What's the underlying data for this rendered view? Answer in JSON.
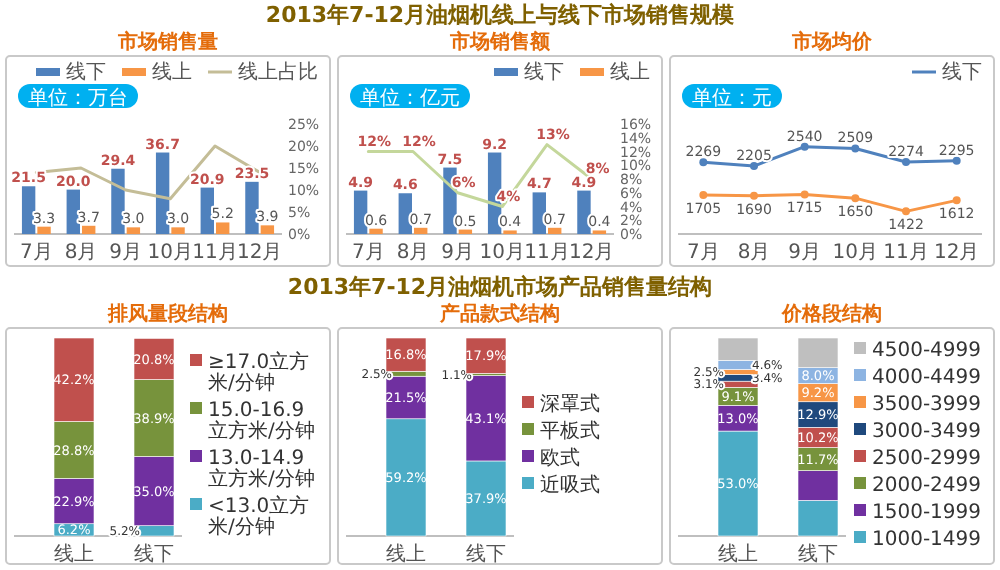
{
  "chart_data": [
    {
      "type": "other",
      "title": "2013年7-12月油烟机线上与线下市场销售规模"
    },
    {
      "type": "bar",
      "subtitle": "市场销售量",
      "categories": [
        "7月",
        "8月",
        "9月",
        "10月",
        "11月",
        "12月"
      ],
      "series": [
        {
          "name": "线下",
          "color": "#4f81bd",
          "values": [
            21.5,
            20.0,
            29.4,
            36.7,
            20.9,
            23.5
          ],
          "value_labels": [
            "21.5",
            "20.0",
            "29.4",
            "36.7",
            "20.9",
            "23.5"
          ]
        },
        {
          "name": "线上",
          "color": "#f79646",
          "values": [
            3.3,
            3.7,
            3.0,
            3.0,
            5.2,
            3.9
          ],
          "value_labels": [
            "3.3",
            "3.7",
            "3.0",
            "3.0",
            "5.2",
            "3.9"
          ]
        },
        {
          "name": "线上占比",
          "type": "line",
          "axis": "y2",
          "color": "#c4bd97",
          "values": [
            14,
            15,
            10,
            8,
            20,
            14
          ]
        }
      ],
      "y2lim": [
        0,
        25
      ],
      "y2ticks": [
        {
          "value": 0,
          "label": "0%"
        },
        {
          "value": 5,
          "label": "5%"
        },
        {
          "value": 10,
          "label": "10%"
        },
        {
          "value": 15,
          "label": "15%"
        },
        {
          "value": 20,
          "label": "20%"
        },
        {
          "value": 25,
          "label": "25%"
        }
      ],
      "legend": "top",
      "annotations": [
        "单位：万台"
      ]
    },
    {
      "type": "bar",
      "subtitle": "市场销售额",
      "categories": [
        "7月",
        "8月",
        "9月",
        "10月",
        "11月",
        "12月"
      ],
      "series": [
        {
          "name": "线下",
          "color": "#4f81bd",
          "values": [
            4.9,
            4.6,
            7.5,
            9.2,
            4.7,
            4.9
          ],
          "value_labels": [
            "4.9",
            "4.6",
            "7.5",
            "9.2",
            "4.7",
            "4.9"
          ]
        },
        {
          "name": "线上",
          "color": "#f79646",
          "values": [
            0.6,
            0.7,
            0.5,
            0.4,
            0.7,
            0.4
          ],
          "value_labels": [
            "0.6",
            "0.7",
            "0.5",
            "0.4",
            "0.7",
            "0.4"
          ]
        },
        {
          "type": "line",
          "axis": "y2",
          "color": "#c4d79b",
          "values": [
            12,
            12,
            6,
            4,
            13,
            8
          ],
          "value_labels": [
            "12%",
            "12%",
            "6%",
            "4%",
            "13%",
            "8%"
          ]
        }
      ],
      "y2lim": [
        0,
        16
      ],
      "y2ticks": [
        {
          "value": 0,
          "label": "0%"
        },
        {
          "value": 2,
          "label": "2%"
        },
        {
          "value": 4,
          "label": "4%"
        },
        {
          "value": 6,
          "label": "6%"
        },
        {
          "value": 8,
          "label": "8%"
        },
        {
          "value": 10,
          "label": "10%"
        },
        {
          "value": 12,
          "label": "12%"
        },
        {
          "value": 14,
          "label": "14%"
        },
        {
          "value": 16,
          "label": "16%"
        }
      ],
      "legend": "top",
      "annotations": [
        "单位：亿元"
      ]
    },
    {
      "type": "line",
      "subtitle": "市场均价",
      "categories": [
        "7月",
        "8月",
        "9月",
        "10月",
        "11月",
        "12月"
      ],
      "series": [
        {
          "name": "线下",
          "color": "#4f81bd",
          "values": [
            2269,
            2205,
            2540,
            2509,
            2274,
            2295
          ]
        },
        {
          "color": "#f79646",
          "values": [
            1705,
            1690,
            1715,
            1650,
            1422,
            1612
          ]
        }
      ],
      "data_labels": true,
      "marker": "circle",
      "legend": "top",
      "annotations": [
        "单位：元"
      ]
    },
    {
      "type": "other",
      "title": "2013年7-12月油烟机市场产品销售量结构"
    },
    {
      "type": "bar",
      "stacked": true,
      "subtitle": "排风量段结构",
      "categories": [
        "线上",
        "线下"
      ],
      "series": [
        {
          "name": "<13.0立方米/分钟",
          "color": "#4bacc6",
          "values": [
            6.2,
            5.2
          ],
          "value_labels": [
            "6.2%",
            "5.2%"
          ]
        },
        {
          "name": "13.0-14.9立方米/分钟",
          "color": "#7030a0",
          "values": [
            22.9,
            35.0
          ],
          "value_labels": [
            "22.9%",
            "35.0%"
          ]
        },
        {
          "name": "15.0-16.9立方米/分钟",
          "color": "#77933c",
          "values": [
            28.8,
            38.9
          ],
          "value_labels": [
            "28.8%",
            "38.9%"
          ]
        },
        {
          "name": "≥17.0立方米/分钟",
          "color": "#c0504d",
          "values": [
            42.2,
            20.8
          ],
          "value_labels": [
            "42.2%",
            "20.8%"
          ]
        }
      ],
      "legend": "right"
    },
    {
      "type": "bar",
      "stacked": true,
      "subtitle": "产品款式结构",
      "categories": [
        "线上",
        "线下"
      ],
      "series": [
        {
          "name": "近吸式",
          "color": "#4bacc6",
          "values": [
            59.2,
            37.9
          ],
          "value_labels": [
            "59.2%",
            "37.9%"
          ]
        },
        {
          "name": "欧式",
          "color": "#7030a0",
          "values": [
            21.5,
            43.1
          ],
          "value_labels": [
            "21.5%",
            "43.1%"
          ]
        },
        {
          "name": "平板式",
          "color": "#77933c",
          "values": [
            2.5,
            1.1
          ],
          "value_labels": [
            "2.5%",
            "1.1%"
          ]
        },
        {
          "name": "深罩式",
          "color": "#c0504d",
          "values": [
            16.8,
            17.9
          ],
          "value_labels": [
            "16.8%",
            "17.9%"
          ]
        }
      ],
      "legend": "right"
    },
    {
      "type": "bar",
      "stacked": true,
      "subtitle": "价格段结构",
      "categories": [
        "线上",
        "线下"
      ],
      "series": [
        {
          "name": "1000-1499",
          "color": "#4bacc6",
          "values": [
            53.0,
            18.0
          ],
          "value_labels": [
            "53.0%",
            null
          ]
        },
        {
          "name": "1500-1999",
          "color": "#7030a0",
          "values": [
            13.0,
            15.0
          ],
          "value_labels": [
            "13.0%",
            null
          ]
        },
        {
          "name": "2000-2499",
          "color": "#77933c",
          "values": [
            9.1,
            11.7
          ],
          "value_labels": [
            "9.1%",
            "11.7%"
          ]
        },
        {
          "name": "2500-2999",
          "color": "#c0504d",
          "values": [
            3.1,
            10.2
          ],
          "value_labels": [
            "3.1%",
            "10.2%"
          ]
        },
        {
          "name": "3000-3499",
          "color": "#1f497d",
          "values": [
            3.4,
            12.9
          ],
          "value_labels": [
            "3.4%",
            "12.9%"
          ]
        },
        {
          "name": "3500-3999",
          "color": "#f79646",
          "values": [
            2.5,
            9.2
          ],
          "value_labels": [
            "2.5%",
            "9.2%"
          ]
        },
        {
          "name": "4000-4499",
          "color": "#8db4e2",
          "values": [
            4.6,
            8.0
          ],
          "value_labels": [
            "4.6%",
            "8.0%"
          ]
        },
        {
          "name": "4500-4999",
          "color": "#bfbfbf",
          "values": [
            11.3,
            15.0
          ]
        }
      ],
      "legend": "right"
    }
  ]
}
